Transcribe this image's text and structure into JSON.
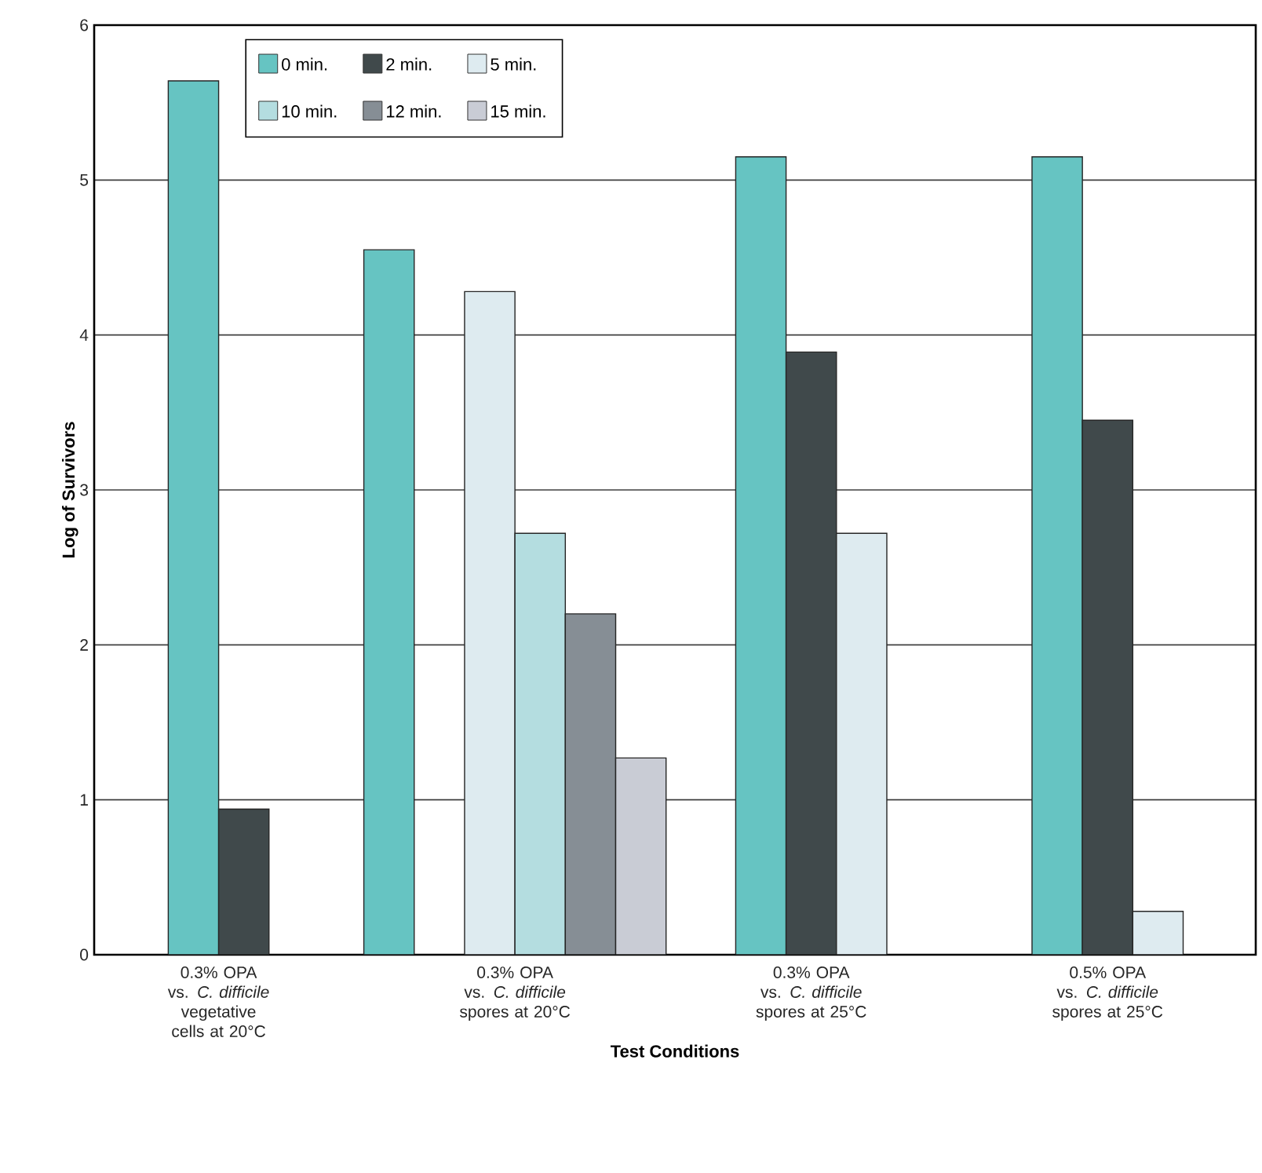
{
  "chart_data": {
    "type": "bar",
    "xlabel": "Test Conditions",
    "ylabel": "Log of Survivors",
    "categories": [
      "0.3% OPA vs. *C. difficile* vegetative cells at 20°C",
      "0.3% OPA vs. *C. difficile* spores at 20°C",
      "0.3% OPA vs. *C. difficile* spores at 25°C",
      "0.5% OPA vs. *C. difficile* spores at 25°C"
    ],
    "series": [
      {
        "name": "0 min.",
        "color": "#66c4c2",
        "values": [
          5.64,
          4.55,
          5.15,
          5.15
        ]
      },
      {
        "name": "2 min.",
        "color": "#40494b",
        "values": [
          0.94,
          null,
          3.89,
          3.45
        ]
      },
      {
        "name": "5 min.",
        "color": "#deebf0",
        "values": [
          null,
          4.28,
          2.72,
          0.28
        ]
      },
      {
        "name": "10 min.",
        "color": "#b4dde0",
        "values": [
          null,
          2.72,
          null,
          null
        ]
      },
      {
        "name": "12 min.",
        "color": "#868e95",
        "values": [
          null,
          2.2,
          null,
          null
        ]
      },
      {
        "name": "15 min.",
        "color": "#c9ccd5",
        "values": [
          null,
          1.27,
          null,
          null
        ]
      }
    ],
    "ylim": [
      0,
      6
    ],
    "yticks": [
      0,
      1,
      2,
      3,
      4,
      5,
      6
    ],
    "grid": "y",
    "legend": "top left"
  }
}
